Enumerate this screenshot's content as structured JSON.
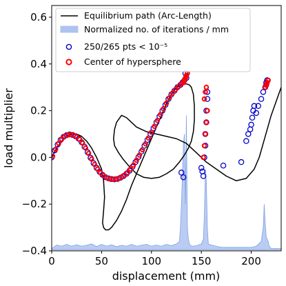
{
  "chart_data": {
    "type": "line",
    "xlabel": "displacement (mm)",
    "ylabel": "load multiplier",
    "xlim": [
      0,
      230
    ],
    "ylim": [
      -0.4,
      0.65
    ],
    "x_ticks": [
      0,
      50,
      100,
      150,
      200
    ],
    "y_ticks": [
      -0.4,
      -0.2,
      0.0,
      0.2,
      0.4,
      0.6
    ],
    "x_tick_labels": [
      "0",
      "50",
      "100",
      "150",
      "200"
    ],
    "y_tick_labels": [
      "−0.4",
      "−0.2",
      "0.0",
      "0.2",
      "0.4",
      "0.6"
    ],
    "grid": false,
    "legend_position": "top-left",
    "legend": [
      {
        "label": "Equilibrium path (Arc-Length)",
        "kind": "line",
        "color": "#000000"
      },
      {
        "label": "Normalized no. of iterations / mm",
        "kind": "area",
        "color": "#aec3f0"
      },
      {
        "label": "250/265 pts < 10⁻⁵",
        "kind": "marker",
        "color": "#0000cc"
      },
      {
        "label": "Center of hypersphere",
        "kind": "marker",
        "color": "#ff0000"
      }
    ],
    "colors": {
      "path": "#000000",
      "area_fill": "#aec3f0",
      "area_edge": "#7fa0e6",
      "points": "#0000cc",
      "centers": "#ff0000"
    },
    "equilibrium_path": {
      "name": "Equilibrium path (Arc-Length)",
      "x": [
        0,
        5,
        10,
        15,
        20,
        25,
        30,
        35,
        40,
        45,
        50,
        52,
        53,
        52,
        51,
        52,
        54,
        57,
        60,
        65,
        70,
        75,
        80,
        85,
        90,
        95,
        100,
        105,
        110,
        115,
        120,
        125,
        130,
        135,
        138,
        140,
        142,
        143,
        143,
        142,
        140,
        137,
        133,
        128,
        122,
        115,
        108,
        100,
        92,
        85,
        78,
        72,
        67,
        63,
        62,
        63,
        65,
        70,
        75,
        80,
        85,
        95,
        105,
        115,
        125,
        135,
        145,
        155,
        165,
        175,
        185,
        195,
        203,
        208,
        212,
        216,
        220,
        225,
        230
      ],
      "y": [
        0.0,
        0.04,
        0.07,
        0.09,
        0.1,
        0.1,
        0.09,
        0.07,
        0.04,
        0.0,
        -0.05,
        -0.1,
        -0.17,
        -0.23,
        -0.28,
        -0.3,
        -0.31,
        -0.31,
        -0.3,
        -0.27,
        -0.23,
        -0.18,
        -0.12,
        -0.07,
        -0.02,
        0.03,
        0.08,
        0.13,
        0.18,
        0.23,
        0.27,
        0.3,
        0.31,
        0.315,
        0.31,
        0.3,
        0.27,
        0.22,
        0.16,
        0.11,
        0.07,
        0.04,
        0.01,
        -0.02,
        -0.05,
        -0.07,
        -0.085,
        -0.09,
        -0.085,
        -0.07,
        -0.04,
        -0.01,
        0.02,
        0.05,
        0.08,
        0.12,
        0.15,
        0.18,
        0.17,
        0.15,
        0.13,
        0.11,
        0.1,
        0.09,
        0.08,
        0.06,
        0.02,
        -0.02,
        -0.05,
        -0.08,
        -0.1,
        -0.09,
        -0.05,
        0.0,
        0.06,
        0.12,
        0.18,
        0.24,
        0.3
      ]
    },
    "iterations_area": {
      "name": "Normalized no. of iterations / mm",
      "baseline": -0.395,
      "x": [
        0,
        5,
        10,
        15,
        20,
        25,
        30,
        35,
        40,
        45,
        50,
        55,
        60,
        65,
        70,
        75,
        80,
        85,
        90,
        95,
        100,
        105,
        110,
        115,
        120,
        125,
        128,
        129,
        130,
        131,
        132,
        133,
        134,
        135,
        136,
        137,
        138,
        139,
        140,
        145,
        150,
        152,
        153,
        154,
        155,
        156,
        157,
        160,
        165,
        170,
        175,
        180,
        185,
        190,
        195,
        200,
        205,
        210,
        212,
        213,
        214,
        215,
        216,
        217,
        218,
        220,
        225,
        230
      ],
      "y": [
        -0.39,
        -0.375,
        -0.38,
        -0.372,
        -0.38,
        -0.374,
        -0.38,
        -0.376,
        -0.37,
        -0.382,
        -0.372,
        -0.38,
        -0.374,
        -0.382,
        -0.376,
        -0.38,
        -0.372,
        -0.38,
        -0.376,
        -0.372,
        -0.38,
        -0.375,
        -0.38,
        -0.372,
        -0.378,
        -0.37,
        -0.36,
        -0.3,
        -0.2,
        -0.08,
        0.05,
        0.1,
        -0.2,
        0.18,
        -0.3,
        -0.35,
        -0.37,
        -0.375,
        -0.38,
        -0.378,
        -0.37,
        -0.35,
        -0.25,
        -0.05,
        -0.1,
        -0.3,
        -0.37,
        -0.375,
        -0.38,
        -0.385,
        -0.385,
        -0.385,
        -0.385,
        -0.385,
        -0.385,
        -0.385,
        -0.38,
        -0.36,
        -0.3,
        -0.2,
        -0.28,
        -0.34,
        -0.35,
        -0.36,
        -0.38,
        -0.39,
        -0.39,
        -0.39
      ]
    },
    "converged_points": {
      "name": "250/265 pts < 10⁻⁵",
      "x": [
        0,
        3,
        6,
        9,
        12,
        15,
        18,
        21,
        24,
        27,
        30,
        33,
        36,
        39,
        42,
        45,
        48,
        51,
        54,
        57,
        60,
        63,
        66,
        69,
        72,
        75,
        78,
        81,
        84,
        87,
        90,
        93,
        96,
        99,
        102,
        105,
        108,
        111,
        114,
        117,
        120,
        123,
        126,
        129,
        131,
        133,
        135,
        134,
        132,
        130,
        150,
        151,
        152,
        153,
        154,
        154,
        155,
        155,
        156,
        156,
        172,
        190,
        195,
        197,
        199,
        200,
        201,
        202,
        203,
        205,
        207,
        210,
        212,
        214,
        215,
        215,
        216,
        216
      ],
      "y": [
        0.0,
        0.03,
        0.055,
        0.075,
        0.088,
        0.095,
        0.098,
        0.096,
        0.09,
        0.08,
        0.065,
        0.045,
        0.022,
        -0.002,
        -0.025,
        -0.045,
        -0.062,
        -0.075,
        -0.085,
        -0.09,
        -0.093,
        -0.094,
        -0.092,
        -0.087,
        -0.08,
        -0.07,
        -0.057,
        -0.04,
        -0.02,
        0.002,
        0.025,
        0.05,
        0.075,
        0.1,
        0.125,
        0.15,
        0.175,
        0.2,
        0.225,
        0.25,
        0.27,
        0.285,
        0.3,
        0.31,
        0.32,
        0.33,
        0.34,
        0.36,
        -0.085,
        -0.065,
        -0.045,
        -0.06,
        -0.08,
        0.0,
        0.05,
        0.1,
        0.15,
        0.2,
        0.25,
        0.28,
        -0.035,
        -0.02,
        0.07,
        0.1,
        0.12,
        0.14,
        0.17,
        0.2,
        0.22,
        0.19,
        0.22,
        0.25,
        0.28,
        0.3,
        0.31,
        0.32,
        0.33,
        0.33
      ]
    },
    "hypersphere_centers": {
      "name": "Center of hypersphere",
      "x": [
        1,
        4,
        7,
        10,
        13,
        16,
        19,
        22,
        25,
        28,
        31,
        34,
        37,
        40,
        43,
        46,
        49,
        52,
        55,
        58,
        61,
        64,
        67,
        70,
        73,
        76,
        79,
        82,
        85,
        88,
        91,
        94,
        97,
        100,
        103,
        106,
        109,
        112,
        115,
        118,
        121,
        124,
        127,
        130,
        132,
        133,
        134,
        135,
        136,
        152,
        153,
        154,
        155,
        156,
        153,
        154,
        155,
        214,
        215,
        216,
        217
      ],
      "y": [
        0.005,
        0.035,
        0.06,
        0.078,
        0.09,
        0.096,
        0.098,
        0.095,
        0.088,
        0.077,
        0.061,
        0.04,
        0.017,
        -0.007,
        -0.03,
        -0.05,
        -0.066,
        -0.078,
        -0.087,
        -0.092,
        -0.094,
        -0.093,
        -0.09,
        -0.084,
        -0.076,
        -0.065,
        -0.05,
        -0.033,
        -0.012,
        0.01,
        0.033,
        0.058,
        0.083,
        0.108,
        0.133,
        0.158,
        0.183,
        0.208,
        0.232,
        0.255,
        0.275,
        0.29,
        0.303,
        0.315,
        0.32,
        0.33,
        0.34,
        0.35,
        0.36,
        0.0,
        0.05,
        0.1,
        0.15,
        0.2,
        0.25,
        0.28,
        0.3,
        0.3,
        0.31,
        0.32,
        0.33
      ]
    }
  }
}
